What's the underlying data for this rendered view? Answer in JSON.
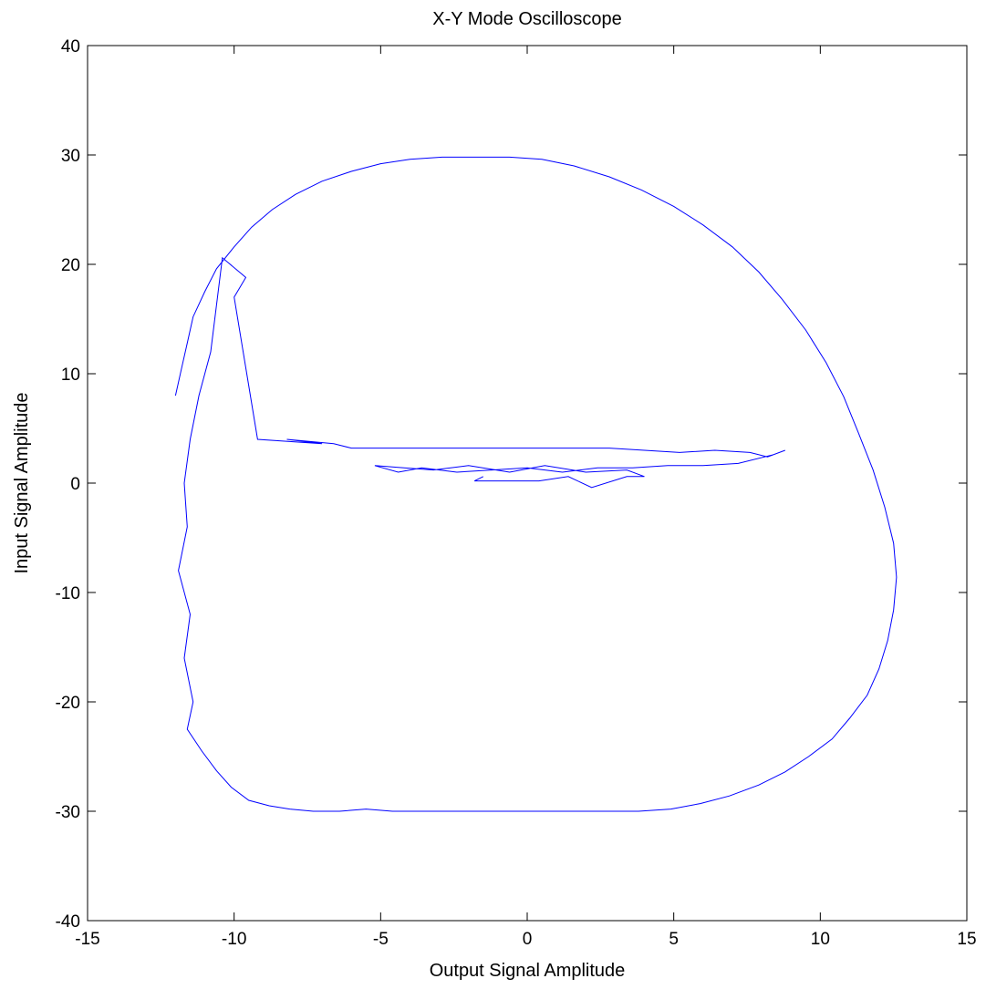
{
  "chart_data": {
    "type": "line",
    "title": "X-Y Mode Oscilloscope",
    "xlabel": "Output Signal Amplitude",
    "ylabel": "Input Signal Amplitude",
    "xlim": [
      -15,
      15
    ],
    "ylim": [
      -40,
      40
    ],
    "xticks": [
      -15,
      -10,
      -5,
      0,
      5,
      10,
      15
    ],
    "yticks": [
      -40,
      -30,
      -20,
      -10,
      0,
      10,
      20,
      30,
      40
    ],
    "xtick_labels": [
      "-15",
      "-10",
      "-5",
      "0",
      "5",
      "10",
      "15"
    ],
    "ytick_labels": [
      "-40",
      "-30",
      "-20",
      "-10",
      "0",
      "10",
      "20",
      "30",
      "40"
    ],
    "grid": false,
    "legend": "none",
    "line_color": "#0000ff",
    "series": [
      {
        "x": [
          -1.5,
          -1.8,
          0.4,
          1.4,
          2.2,
          3.4,
          4.0,
          3.4,
          2.0,
          0.6,
          -0.6,
          -2.0,
          -3.2,
          -4.2,
          -5.2,
          -4.4,
          -3.6,
          -2.4,
          -1.2,
          0.0,
          1.2,
          2.4,
          3.6,
          4.8,
          6.0,
          7.2,
          8.4,
          8.8,
          8.2,
          7.6,
          6.4,
          5.2,
          4.0,
          2.8,
          1.6,
          0.0,
          -2.0,
          -4.0,
          -6.0,
          -6.6,
          -8.2,
          -7.0,
          -9.2,
          -10.0,
          -9.6,
          -10.4,
          -10.8,
          -11.2,
          -11.5,
          -11.7,
          -11.6,
          -11.9,
          -11.5,
          -11.7,
          -11.4,
          -11.6,
          -11.1,
          -10.6,
          -10.1,
          -9.5,
          -8.8,
          -8.1,
          -7.3,
          -6.4,
          -5.5,
          -4.6,
          -3.6,
          -2.6,
          -1.6,
          -0.5,
          0.5,
          1.6,
          2.7,
          3.8,
          4.9,
          5.9,
          6.9,
          7.9,
          8.8,
          9.6,
          10.4,
          11.0,
          11.6,
          12.0,
          12.3,
          12.5,
          12.6,
          12.5,
          12.2,
          11.8,
          11.3,
          10.8,
          10.2,
          9.5,
          8.7,
          7.9,
          7.0,
          6.0,
          5.0,
          3.9,
          2.8,
          1.6,
          0.5,
          -0.6,
          -1.8,
          -2.9,
          -4.0,
          -5.0,
          -6.0,
          -7.0,
          -7.9,
          -8.7,
          -9.4,
          -10.0,
          -10.6,
          -11.0,
          -11.4,
          -11.6,
          -11.8,
          -12.0
        ],
        "y": [
          0.6,
          0.2,
          0.2,
          0.6,
          -0.4,
          0.6,
          0.6,
          1.2,
          1.0,
          1.6,
          1.0,
          1.6,
          1.2,
          1.4,
          1.6,
          1.0,
          1.4,
          1.0,
          1.2,
          1.4,
          1.0,
          1.4,
          1.4,
          1.6,
          1.6,
          1.8,
          2.6,
          3.0,
          2.4,
          2.8,
          3.0,
          2.8,
          3.0,
          3.2,
          3.2,
          3.2,
          3.2,
          3.2,
          3.2,
          3.6,
          4.0,
          3.6,
          4.0,
          17.0,
          18.8,
          20.6,
          12.0,
          8.0,
          4.0,
          0.0,
          -4.0,
          -8.0,
          -12.0,
          -16.0,
          -20.0,
          -22.5,
          -24.5,
          -26.3,
          -27.8,
          -29.0,
          -29.5,
          -29.8,
          -30.0,
          -30.0,
          -29.8,
          -30.0,
          -30.0,
          -30.0,
          -30.0,
          -30.0,
          -30.0,
          -30.0,
          -30.0,
          -30.0,
          -29.8,
          -29.3,
          -28.6,
          -27.6,
          -26.4,
          -25.0,
          -23.4,
          -21.5,
          -19.4,
          -17.0,
          -14.4,
          -11.6,
          -8.6,
          -5.5,
          -2.2,
          1.2,
          4.6,
          7.9,
          11.0,
          14.0,
          16.8,
          19.3,
          21.6,
          23.6,
          25.3,
          26.8,
          28.0,
          29.0,
          29.6,
          29.8,
          29.8,
          29.8,
          29.6,
          29.2,
          28.5,
          27.6,
          26.4,
          25.0,
          23.4,
          21.6,
          19.6,
          17.5,
          15.2,
          12.8,
          10.4,
          8.0
        ]
      }
    ]
  }
}
